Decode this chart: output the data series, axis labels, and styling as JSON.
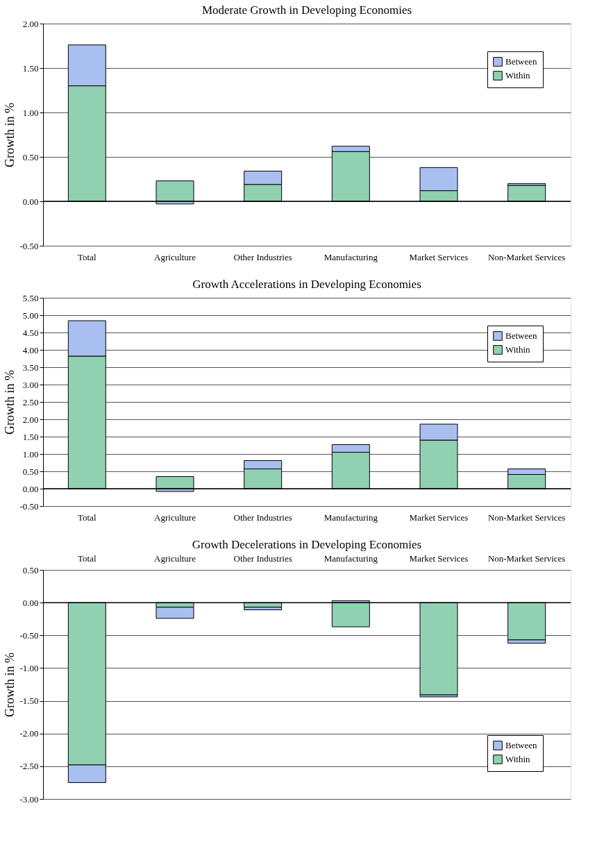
{
  "chart_data": [
    {
      "type": "bar",
      "stacked": true,
      "title": "Moderate Growth in Developing Economies",
      "ylabel": "Growth in %",
      "categories": [
        "Total",
        "Agriculture",
        "Other Industries",
        "Manufacturing",
        "Market Services",
        "Non-Market Services"
      ],
      "series": [
        {
          "name": "Within",
          "color": "#8fd1b0",
          "values": [
            1.3,
            0.23,
            0.19,
            0.56,
            0.12,
            0.18
          ]
        },
        {
          "name": "Between",
          "color": "#a9bff0",
          "values": [
            0.46,
            -0.03,
            0.15,
            0.06,
            0.26,
            0.02
          ]
        }
      ],
      "ylim": [
        -0.5,
        2.0
      ],
      "yticks": [
        {
          "value": -0.5,
          "label": "-0.50"
        },
        {
          "value": 0,
          "label": "0.00"
        },
        {
          "value": 0.5,
          "label": "0.50"
        },
        {
          "value": 1,
          "label": "1.00"
        },
        {
          "value": 1.5,
          "label": "1.50"
        },
        {
          "value": 2,
          "label": "2.00"
        }
      ],
      "grid": "y",
      "legend": "top right"
    },
    {
      "type": "bar",
      "stacked": true,
      "title": "Growth Accelerations in Developing Economies",
      "ylabel": "Growth in %",
      "categories": [
        "Total",
        "Agriculture",
        "Other Industries",
        "Manufacturing",
        "Market Services",
        "Non-Market Services"
      ],
      "series": [
        {
          "name": "Within",
          "color": "#8fd1b0",
          "values": [
            3.82,
            0.35,
            0.57,
            1.05,
            1.4,
            0.41
          ]
        },
        {
          "name": "Between",
          "color": "#a9bff0",
          "values": [
            1.02,
            -0.08,
            0.24,
            0.22,
            0.46,
            0.16
          ]
        }
      ],
      "ylim": [
        -0.5,
        5.5
      ],
      "yticks": [
        {
          "value": -0.5,
          "label": "-0.50"
        },
        {
          "value": 0,
          "label": "0.00"
        },
        {
          "value": 0.5,
          "label": "0.50"
        },
        {
          "value": 1,
          "label": "1.00"
        },
        {
          "value": 1.5,
          "label": "1.50"
        },
        {
          "value": 2,
          "label": "2.00"
        },
        {
          "value": 2.5,
          "label": "2.50"
        },
        {
          "value": 3,
          "label": "3.00"
        },
        {
          "value": 3.5,
          "label": "3.50"
        },
        {
          "value": 4,
          "label": "4.00"
        },
        {
          "value": 4.5,
          "label": "4.50"
        },
        {
          "value": 5,
          "label": "5.00"
        },
        {
          "value": 5.5,
          "label": "5.50"
        }
      ],
      "grid": "y",
      "legend": "top right"
    },
    {
      "type": "bar",
      "stacked": true,
      "title": "Growth Decelerations in Developing Economies",
      "ylabel": "Growth in %",
      "categories": [
        "Total",
        "Agriculture",
        "Other Industries",
        "Manufacturing",
        "Market Services",
        "Non-Market Services"
      ],
      "series": [
        {
          "name": "Within",
          "color": "#8fd1b0",
          "values": [
            -2.48,
            -0.07,
            -0.07,
            -0.37,
            -1.41,
            -0.57
          ]
        },
        {
          "name": "Between",
          "color": "#a9bff0",
          "values": [
            -0.27,
            -0.17,
            -0.04,
            0.03,
            -0.03,
            -0.05
          ]
        }
      ],
      "ylim": [
        -3.0,
        0.5
      ],
      "yticks": [
        {
          "value": -3,
          "label": "-3.00"
        },
        {
          "value": -2.5,
          "label": "-2.50"
        },
        {
          "value": -2,
          "label": "-2.00"
        },
        {
          "value": -1.5,
          "label": "-1.50"
        },
        {
          "value": -1,
          "label": "-1.00"
        },
        {
          "value": -0.5,
          "label": "-0.50"
        },
        {
          "value": 0,
          "label": "0.00"
        },
        {
          "value": 0.5,
          "label": "0.50"
        }
      ],
      "grid": "y",
      "legend": "bottom right"
    }
  ]
}
